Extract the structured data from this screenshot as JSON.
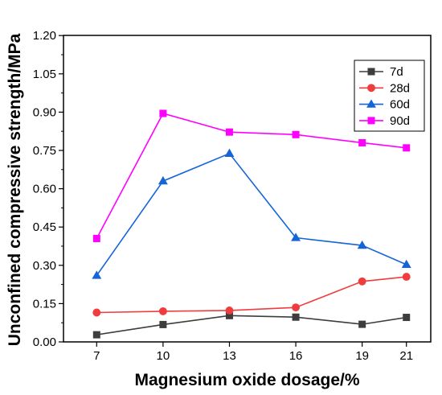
{
  "chart_data": {
    "type": "line",
    "title": "",
    "xlabel": "Magnesium oxide dosage/%",
    "ylabel": "Unconfined compressive strength/MPa",
    "x": [
      7,
      10,
      13,
      16,
      19,
      21
    ],
    "x_tick_labels": [
      "7",
      "10",
      "13",
      "16",
      "19",
      "21"
    ],
    "ylim": [
      0,
      1.2
    ],
    "y_ticks": [
      0.0,
      0.15,
      0.3,
      0.45,
      0.6,
      0.75,
      0.9,
      1.05,
      1.2
    ],
    "y_tick_labels": [
      "0.00",
      "0.15",
      "0.30",
      "0.45",
      "0.60",
      "0.75",
      "0.90",
      "1.05",
      "1.20"
    ],
    "grid": false,
    "legend_position": "top-right",
    "series": [
      {
        "name": "7d",
        "color": "#3d3d3d",
        "marker": "square",
        "values": [
          0.028,
          0.068,
          0.103,
          0.097,
          0.069,
          0.096
        ]
      },
      {
        "name": "28d",
        "color": "#f03c3c",
        "marker": "circle",
        "values": [
          0.115,
          0.12,
          0.123,
          0.135,
          0.237,
          0.255
        ]
      },
      {
        "name": "60d",
        "color": "#1565d8",
        "marker": "triangle",
        "values": [
          0.26,
          0.63,
          0.738,
          0.408,
          0.378,
          0.303
        ]
      },
      {
        "name": "90d",
        "color": "#ff00ff",
        "marker": "square",
        "values": [
          0.405,
          0.895,
          0.822,
          0.812,
          0.78,
          0.76
        ]
      }
    ]
  }
}
